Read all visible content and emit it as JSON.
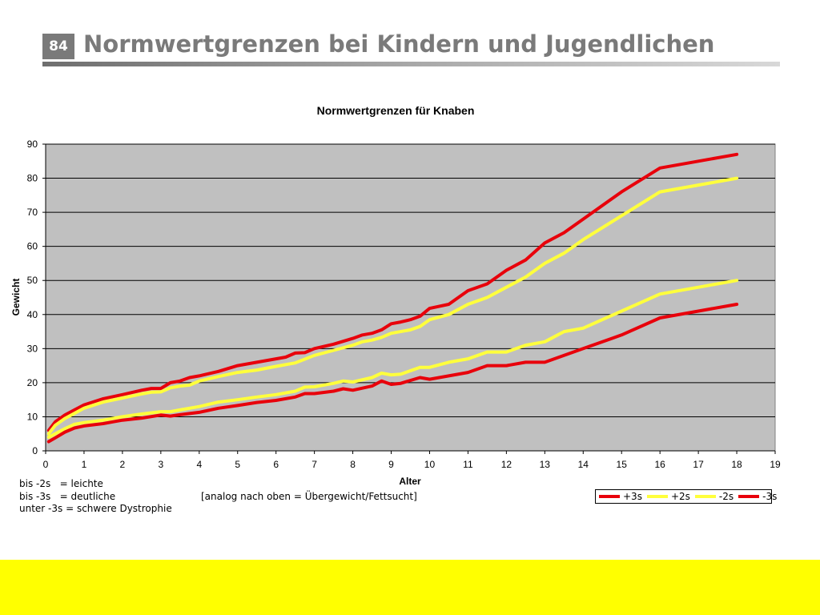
{
  "slide": {
    "number": "84",
    "title": "Normwertgrenzen bei Kindern und Jugendlichen"
  },
  "notes": {
    "line1": "bis -2s   = leichte",
    "line2": "bis -3s   = deutliche",
    "line3": "unter -3s = schwere Dystrophie",
    "analog": "[analog nach oben = Übergewicht/Fettsucht]"
  },
  "colors": {
    "red": "#e8000b",
    "yellow": "#ffff3c",
    "plot_bg": "#c0c0c0",
    "footer": "#ffff00"
  },
  "chart_data": {
    "type": "line",
    "title": "Normwertgrenzen für Knaben",
    "xlabel": "Alter",
    "ylabel": "Gewicht",
    "xlim": [
      0,
      19
    ],
    "ylim": [
      0,
      90
    ],
    "xticks": [
      0,
      1,
      2,
      3,
      4,
      5,
      6,
      7,
      8,
      9,
      10,
      11,
      12,
      13,
      14,
      15,
      16,
      17,
      18,
      19
    ],
    "yticks": [
      0,
      10,
      20,
      30,
      40,
      50,
      60,
      70,
      80,
      90
    ],
    "grid": "horizontal",
    "legend_position": "bottom-right",
    "series": [
      {
        "name": "+3s",
        "color": "#e8000b",
        "points": [
          [
            0.08,
            6
          ],
          [
            0.25,
            8.5
          ],
          [
            0.5,
            10.5
          ],
          [
            0.75,
            12
          ],
          [
            1,
            13.5
          ],
          [
            1.5,
            15.3
          ],
          [
            2,
            16.5
          ],
          [
            2.5,
            17.8
          ],
          [
            2.75,
            18.3
          ],
          [
            3,
            18.3
          ],
          [
            3.25,
            20
          ],
          [
            3.5,
            20.5
          ],
          [
            3.75,
            21.5
          ],
          [
            4,
            22
          ],
          [
            4.5,
            23.3
          ],
          [
            5,
            25
          ],
          [
            5.5,
            26
          ],
          [
            6,
            27
          ],
          [
            6.25,
            27.5
          ],
          [
            6.5,
            28.7
          ],
          [
            6.75,
            28.8
          ],
          [
            7,
            30
          ],
          [
            7.5,
            31.3
          ],
          [
            8,
            33
          ],
          [
            8.25,
            34
          ],
          [
            8.5,
            34.5
          ],
          [
            8.75,
            35.5
          ],
          [
            9,
            37.3
          ],
          [
            9.25,
            37.8
          ],
          [
            9.5,
            38.5
          ],
          [
            9.75,
            39.5
          ],
          [
            10,
            41.8
          ],
          [
            10.5,
            43
          ],
          [
            11,
            47
          ],
          [
            11.5,
            49
          ],
          [
            12,
            53
          ],
          [
            12.5,
            56
          ],
          [
            13,
            61
          ],
          [
            13.5,
            64
          ],
          [
            14,
            68
          ],
          [
            15,
            76
          ],
          [
            16,
            83
          ],
          [
            17,
            85
          ],
          [
            18,
            87
          ]
        ]
      },
      {
        "name": "+2s",
        "color": "#ffff3c",
        "points": [
          [
            0.08,
            5
          ],
          [
            0.25,
            7.5
          ],
          [
            0.5,
            9.5
          ],
          [
            0.75,
            11
          ],
          [
            1,
            12.5
          ],
          [
            1.5,
            14.3
          ],
          [
            2,
            15.5
          ],
          [
            2.5,
            16.7
          ],
          [
            2.75,
            17.2
          ],
          [
            3,
            17.3
          ],
          [
            3.25,
            18.5
          ],
          [
            3.5,
            19
          ],
          [
            3.75,
            19.3
          ],
          [
            4,
            20.5
          ],
          [
            4.5,
            21.8
          ],
          [
            5,
            23
          ],
          [
            5.5,
            23.7
          ],
          [
            6,
            24.8
          ],
          [
            6.5,
            25.8
          ],
          [
            7,
            28
          ],
          [
            7.5,
            29.5
          ],
          [
            8,
            31
          ],
          [
            8.25,
            32
          ],
          [
            8.5,
            32.5
          ],
          [
            8.75,
            33.3
          ],
          [
            9,
            34.5
          ],
          [
            9.5,
            35.5
          ],
          [
            9.75,
            36.5
          ],
          [
            10,
            38.5
          ],
          [
            10.5,
            40
          ],
          [
            11,
            43
          ],
          [
            11.5,
            45
          ],
          [
            12,
            48
          ],
          [
            12.5,
            51
          ],
          [
            13,
            55
          ],
          [
            13.5,
            58
          ],
          [
            14,
            62
          ],
          [
            15,
            69
          ],
          [
            16,
            76
          ],
          [
            17,
            78
          ],
          [
            18,
            80
          ]
        ]
      },
      {
        "name": "-2s",
        "color": "#ffff3c",
        "points": [
          [
            0.08,
            4
          ],
          [
            0.25,
            5
          ],
          [
            0.5,
            6.5
          ],
          [
            0.75,
            7.8
          ],
          [
            1,
            8.3
          ],
          [
            1.5,
            9
          ],
          [
            2,
            10
          ],
          [
            2.5,
            10.8
          ],
          [
            3,
            11.5
          ],
          [
            3.25,
            11.5
          ],
          [
            3.5,
            12
          ],
          [
            4,
            13
          ],
          [
            4.5,
            14.3
          ],
          [
            5,
            15
          ],
          [
            5.5,
            15.8
          ],
          [
            6,
            16.5
          ],
          [
            6.5,
            17.5
          ],
          [
            6.75,
            18.7
          ],
          [
            7,
            18.8
          ],
          [
            7.5,
            19.8
          ],
          [
            7.75,
            20.5
          ],
          [
            8,
            20.2
          ],
          [
            8.5,
            21.5
          ],
          [
            8.75,
            22.8
          ],
          [
            9,
            22.3
          ],
          [
            9.25,
            22.5
          ],
          [
            9.5,
            23.5
          ],
          [
            9.75,
            24.5
          ],
          [
            10,
            24.5
          ],
          [
            10.5,
            26
          ],
          [
            11,
            27
          ],
          [
            11.5,
            29
          ],
          [
            12,
            29
          ],
          [
            12.5,
            31
          ],
          [
            13,
            32
          ],
          [
            13.5,
            35
          ],
          [
            14,
            36
          ],
          [
            15,
            41
          ],
          [
            16,
            46
          ],
          [
            17,
            48
          ],
          [
            18,
            50
          ]
        ]
      },
      {
        "name": "-3s",
        "color": "#e8000b",
        "points": [
          [
            0.08,
            2.7
          ],
          [
            0.25,
            3.8
          ],
          [
            0.5,
            5.5
          ],
          [
            0.75,
            6.7
          ],
          [
            1,
            7.3
          ],
          [
            1.5,
            8
          ],
          [
            1.75,
            8.5
          ],
          [
            2,
            9
          ],
          [
            2.5,
            9.6
          ],
          [
            3,
            10.5
          ],
          [
            3.25,
            10.2
          ],
          [
            3.5,
            10.6
          ],
          [
            4,
            11.3
          ],
          [
            4.5,
            12.5
          ],
          [
            5,
            13.3
          ],
          [
            5.5,
            14.2
          ],
          [
            6,
            14.8
          ],
          [
            6.5,
            15.8
          ],
          [
            6.75,
            16.8
          ],
          [
            7,
            16.8
          ],
          [
            7.5,
            17.5
          ],
          [
            7.75,
            18.2
          ],
          [
            8,
            17.8
          ],
          [
            8.5,
            19
          ],
          [
            8.75,
            20.5
          ],
          [
            9,
            19.5
          ],
          [
            9.25,
            19.8
          ],
          [
            9.75,
            21.5
          ],
          [
            10,
            21
          ],
          [
            10.5,
            22
          ],
          [
            11,
            23
          ],
          [
            11.5,
            25
          ],
          [
            12,
            25
          ],
          [
            12.5,
            26
          ],
          [
            13,
            26
          ],
          [
            14,
            30
          ],
          [
            15,
            34
          ],
          [
            16,
            39
          ],
          [
            17,
            41
          ],
          [
            18,
            43
          ]
        ]
      }
    ]
  }
}
